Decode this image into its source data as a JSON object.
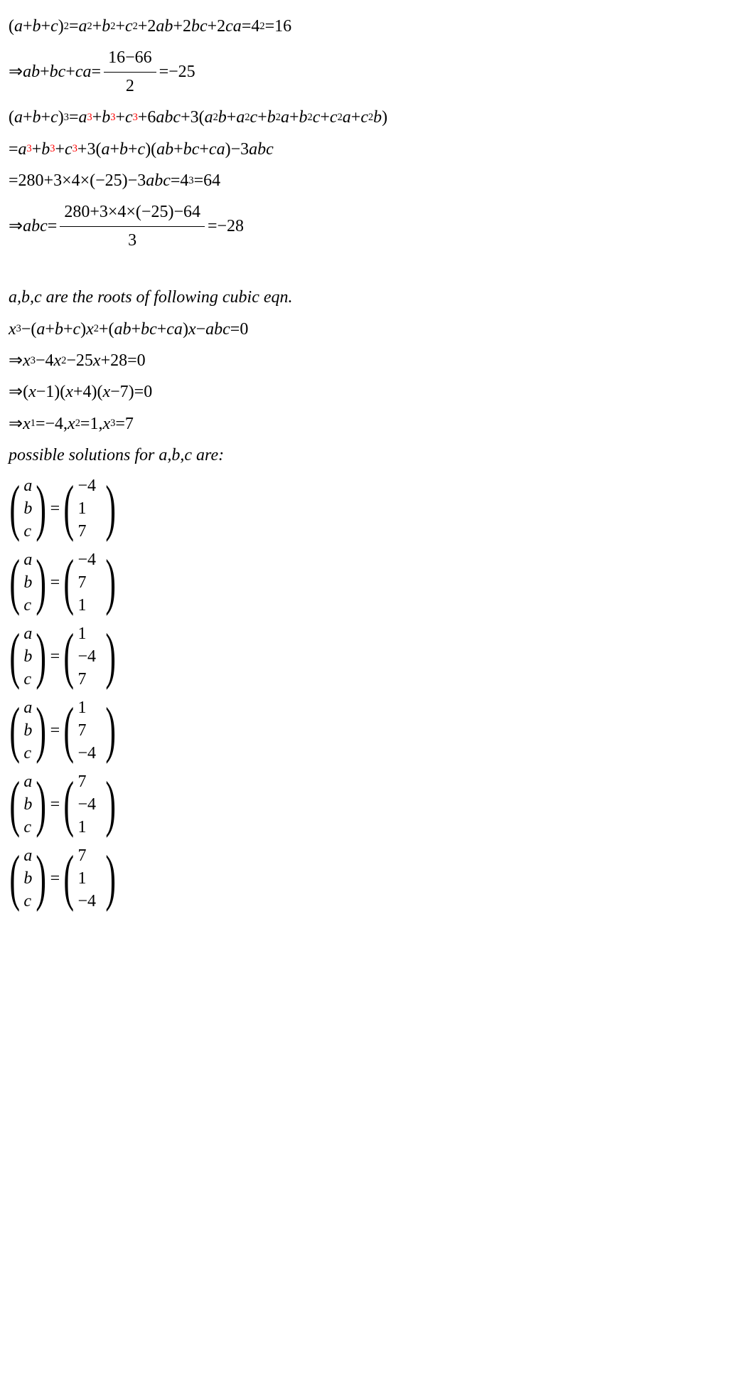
{
  "lines": {
    "l1_a": "(",
    "l1_b": "a",
    "l1_c": "+",
    "l1_d": "b",
    "l1_e": "+",
    "l1_f": "c",
    "l1_g": ")",
    "l1_sup1": "2",
    "l1_h": "=",
    "l1_i": "a",
    "l1_sup2": "2",
    "l1_j": "+",
    "l1_k": "b",
    "l1_sup3": "2",
    "l1_l": "+",
    "l1_m": "c",
    "l1_sup4": "2",
    "l1_n": "+2",
    "l1_o": "ab",
    "l1_p": "+2",
    "l1_q": "bc",
    "l1_r": "+2",
    "l1_s": "ca",
    "l1_t": "=4",
    "l1_sup5": "2",
    "l1_u": "=16",
    "l2_a": "⇒",
    "l2_b": "ab",
    "l2_c": "+",
    "l2_d": "bc",
    "l2_e": "+",
    "l2_f": "ca",
    "l2_g": "=",
    "l2_num": "16−66",
    "l2_den": "2",
    "l2_h": "=−25",
    "l3_a": "(",
    "l3_b": "a",
    "l3_c": "+",
    "l3_d": "b",
    "l3_e": "+",
    "l3_f": "c",
    "l3_g": ")",
    "l3_sup1": "3",
    "l3_h": "=",
    "l3_i": "a",
    "l3_sup2": "3",
    "l3_j": "+",
    "l3_k": "b",
    "l3_sup3": "3",
    "l3_l": "+",
    "l3_m": "c",
    "l3_sup4": "3",
    "l3_n": "+6",
    "l3_o": "abc",
    "l3_p": "+3(",
    "l3_q": "a",
    "l3_sup5": "2",
    "l3_r": "b",
    "l3_s": "+",
    "l3_t": "a",
    "l3_sup6": "2",
    "l3_u": "c",
    "l3_v": "+",
    "l3_w": "b",
    "l3_sup7": "2",
    "l3_x": "a",
    "l3_y": "+",
    "l3_z": "b",
    "l3_sup8": "2",
    "l3_aa": "c",
    "l3_ab": "+",
    "l3_ac": "c",
    "l3_sup9": "2",
    "l3_ad": "a",
    "l3_ae": "+",
    "l3_af": "c",
    "l3_sup10": "2",
    "l3_ag": "b",
    "l3_ah": ")",
    "l4_a": "=",
    "l4_b": "a",
    "l4_sup1": "3",
    "l4_c": "+",
    "l4_d": "b",
    "l4_sup2": "3",
    "l4_e": "+",
    "l4_f": "c",
    "l4_sup3": "3",
    "l4_g": "+3(",
    "l4_h": "a",
    "l4_i": "+",
    "l4_j": "b",
    "l4_k": "+",
    "l4_l": "c",
    "l4_m": ")(",
    "l4_n": "ab",
    "l4_o": "+",
    "l4_p": "bc",
    "l4_q": "+",
    "l4_r": "ca",
    "l4_s": ")−3",
    "l4_t": "abc",
    "l5_a": "=280+3×4×(−25)−3",
    "l5_b": "abc",
    "l5_c": "=4",
    "l5_sup1": "3",
    "l5_d": "=64",
    "l6_a": "⇒",
    "l6_b": "abc",
    "l6_c": "=",
    "l6_num": "280+3×4×(−25)−64",
    "l6_den": "3",
    "l6_d": "=−28",
    "l7": "a,b,c are the roots of following cubic eqn.",
    "l8_a": "x",
    "l8_sup1": "3",
    "l8_b": "−(",
    "l8_c": "a",
    "l8_d": "+",
    "l8_e": "b",
    "l8_f": "+",
    "l8_g": "c",
    "l8_h": ")",
    "l8_i": "x",
    "l8_sup2": "2",
    "l8_j": "+(",
    "l8_k": "ab",
    "l8_l": "+",
    "l8_m": "bc",
    "l8_n": "+",
    "l8_o": "ca",
    "l8_p": ")",
    "l8_q": "x",
    "l8_r": "−",
    "l8_s": "abc",
    "l8_t": "=0",
    "l9_a": "⇒",
    "l9_b": "x",
    "l9_sup1": "3",
    "l9_c": "−4",
    "l9_d": "x",
    "l9_sup2": "2",
    "l9_e": "−25",
    "l9_f": "x",
    "l9_g": "+28=0",
    "l10_a": "⇒(",
    "l10_b": "x",
    "l10_c": "−1)(",
    "l10_d": "x",
    "l10_e": "+4)(",
    "l10_f": "x",
    "l10_g": "−7)=0",
    "l11_a": "⇒",
    "l11_b": "x",
    "l11_sub1": "1",
    "l11_c": "=−4, ",
    "l11_d": "x",
    "l11_sub2": "2",
    "l11_e": "=1, ",
    "l11_f": "x",
    "l11_sub3": "3",
    "l11_g": "=7",
    "l12": "possible solutions for a,b,c are:",
    "eq": "="
  },
  "abc": {
    "a": "a",
    "b": "b",
    "c": "c"
  },
  "solutions": [
    [
      "−4",
      "1",
      "7"
    ],
    [
      "−4",
      "7",
      "1"
    ],
    [
      "1",
      "−4",
      "7"
    ],
    [
      "1",
      "7",
      "−4"
    ],
    [
      "7",
      "−4",
      "1"
    ],
    [
      "7",
      "1",
      "−4"
    ]
  ]
}
